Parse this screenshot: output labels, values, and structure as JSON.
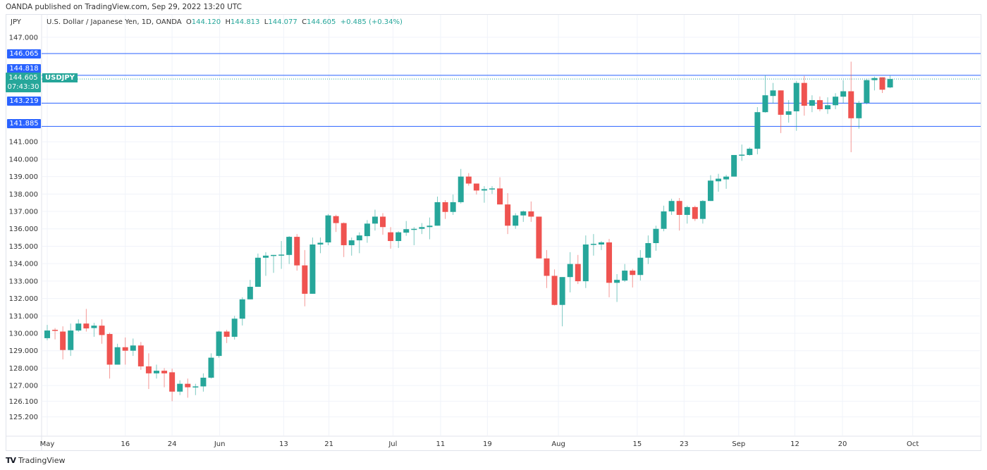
{
  "published": "OANDA published on TradingView.com, Sep 29, 2022 13:20 UTC",
  "currency": "JPY",
  "legend": {
    "title": "U.S. Dollar / Japanese Yen, 1D, OANDA",
    "o_label": "O",
    "o": "144.120",
    "h_label": "H",
    "h": "144.813",
    "l_label": "L",
    "l": "144.077",
    "c_label": "C",
    "c": "144.605",
    "change": "+0.485 (+0.34%)"
  },
  "price_tags": {
    "level1": "146.065",
    "level2": "144.818",
    "current": "144.605",
    "countdown": "07:43:30",
    "level3": "143.219",
    "level4": "141.885",
    "symbol": "USDJPY"
  },
  "footer": {
    "logo": "TV",
    "brand": "TradingView"
  },
  "colors": {
    "up": "#26a69a",
    "down": "#ef5350",
    "level": "#2962ff",
    "grid": "#f0f3fa"
  },
  "chart_data": {
    "type": "candlestick",
    "title": "U.S. Dollar / Japanese Yen, 1D, OANDA",
    "ylabel": "JPY",
    "ylim": [
      125.0,
      147.3
    ],
    "y_ticks": [
      "147.000",
      "141.000",
      "140.000",
      "139.000",
      "138.000",
      "137.000",
      "136.000",
      "135.000",
      "134.000",
      "133.000",
      "132.000",
      "131.000",
      "130.000",
      "129.000",
      "128.000",
      "127.000",
      "126.100",
      "125.200"
    ],
    "x_ticks": [
      {
        "label": "May",
        "bar": 0
      },
      {
        "label": "16",
        "bar": 10
      },
      {
        "label": "24",
        "bar": 16
      },
      {
        "label": "Jun",
        "bar": 22.1
      },
      {
        "label": "13",
        "bar": 30.3
      },
      {
        "label": "21",
        "bar": 36.1
      },
      {
        "label": "Jul",
        "bar": 44.3
      },
      {
        "label": "11",
        "bar": 50.4
      },
      {
        "label": "19",
        "bar": 56.4
      },
      {
        "label": "Aug",
        "bar": 65.5
      },
      {
        "label": "15",
        "bar": 75.6
      },
      {
        "label": "23",
        "bar": 81.6
      },
      {
        "label": "Sep",
        "bar": 88.6
      },
      {
        "label": "12",
        "bar": 95.8
      },
      {
        "label": "20",
        "bar": 101.9
      },
      {
        "label": "Oct",
        "bar": 110.9
      }
    ],
    "levels": [
      146.065,
      144.818,
      143.219,
      141.885
    ],
    "last_price": 144.605,
    "ohlc": [
      [
        129.72,
        130.48,
        129.6,
        130.16
      ],
      [
        130.2,
        130.3,
        129.65,
        130.15
      ],
      [
        130.1,
        130.4,
        128.5,
        129.04
      ],
      [
        129.04,
        130.56,
        128.7,
        130.16
      ],
      [
        130.16,
        130.8,
        130.08,
        130.56
      ],
      [
        130.56,
        131.4,
        130.1,
        130.28
      ],
      [
        130.3,
        130.6,
        129.8,
        130.44
      ],
      [
        130.44,
        130.8,
        129.4,
        129.9
      ],
      [
        129.96,
        130.04,
        127.4,
        128.2
      ],
      [
        128.2,
        129.4,
        128.2,
        129.2
      ],
      [
        129.2,
        129.76,
        128.2,
        129.0
      ],
      [
        129.0,
        129.7,
        128.7,
        129.3
      ],
      [
        129.3,
        129.5,
        127.9,
        128.1
      ],
      [
        128.1,
        128.85,
        126.8,
        127.7
      ],
      [
        127.7,
        128.2,
        127.4,
        127.85
      ],
      [
        127.85,
        128.0,
        126.9,
        127.7
      ],
      [
        127.76,
        127.97,
        126.1,
        126.65
      ],
      [
        126.65,
        127.3,
        126.45,
        127.1
      ],
      [
        127.1,
        127.4,
        126.3,
        126.9
      ],
      [
        126.9,
        127.1,
        126.45,
        126.95
      ],
      [
        126.95,
        127.7,
        126.65,
        127.45
      ],
      [
        127.45,
        128.85,
        127.4,
        128.6
      ],
      [
        128.7,
        130.15,
        128.6,
        130.1
      ],
      [
        130.1,
        130.2,
        129.44,
        129.8
      ],
      [
        129.8,
        131.0,
        129.64,
        130.84
      ],
      [
        130.84,
        132.07,
        130.45,
        131.95
      ],
      [
        131.95,
        133.07,
        131.95,
        132.67
      ],
      [
        132.67,
        134.58,
        132.67,
        134.34
      ],
      [
        134.34,
        134.66,
        133.3,
        134.46
      ],
      [
        134.46,
        134.5,
        133.47,
        134.5
      ],
      [
        134.5,
        135.3,
        133.7,
        134.52
      ],
      [
        134.5,
        135.58,
        133.98,
        135.54
      ],
      [
        135.54,
        135.7,
        133.6,
        133.9
      ],
      [
        133.9,
        134.78,
        131.55,
        132.27
      ],
      [
        132.27,
        135.5,
        132.27,
        135.1
      ],
      [
        135.1,
        135.5,
        134.6,
        135.2
      ],
      [
        135.22,
        136.85,
        135.06,
        136.77
      ],
      [
        136.73,
        136.81,
        135.82,
        136.33
      ],
      [
        136.33,
        136.37,
        134.38,
        135.06
      ],
      [
        135.06,
        135.5,
        134.46,
        135.34
      ],
      [
        135.34,
        135.8,
        134.6,
        135.62
      ],
      [
        135.58,
        136.5,
        135.2,
        136.3
      ],
      [
        136.3,
        137.1,
        135.9,
        136.7
      ],
      [
        136.7,
        136.9,
        135.66,
        136.1
      ],
      [
        135.8,
        136.1,
        134.86,
        135.3
      ],
      [
        135.3,
        135.86,
        134.9,
        135.8
      ],
      [
        135.78,
        136.45,
        135.6,
        135.98
      ],
      [
        135.97,
        136.1,
        135.06,
        136.0
      ],
      [
        136.0,
        136.33,
        135.7,
        136.1
      ],
      [
        136.1,
        136.65,
        135.4,
        136.18
      ],
      [
        136.18,
        137.85,
        136.18,
        137.53
      ],
      [
        137.53,
        137.65,
        136.57,
        136.97
      ],
      [
        136.97,
        137.97,
        136.8,
        137.53
      ],
      [
        137.53,
        139.44,
        137.45,
        139.0
      ],
      [
        139.0,
        139.2,
        138.48,
        138.6
      ],
      [
        138.6,
        138.6,
        137.97,
        138.2
      ],
      [
        138.2,
        138.45,
        137.5,
        138.28
      ],
      [
        138.28,
        138.45,
        138.0,
        138.32
      ],
      [
        138.32,
        138.96,
        137.4,
        137.4
      ],
      [
        137.4,
        138.05,
        135.7,
        136.18
      ],
      [
        136.18,
        136.9,
        136.0,
        136.77
      ],
      [
        136.77,
        137.05,
        136.4,
        137.0
      ],
      [
        137.0,
        137.57,
        136.4,
        136.7
      ],
      [
        136.7,
        136.7,
        134.3,
        134.3
      ],
      [
        134.3,
        134.78,
        132.6,
        133.3
      ],
      [
        133.3,
        133.67,
        131.6,
        131.63
      ],
      [
        131.63,
        133.23,
        130.4,
        133.23
      ],
      [
        133.23,
        134.66,
        132.35,
        133.98
      ],
      [
        133.98,
        134.5,
        132.83,
        132.99
      ],
      [
        132.99,
        135.62,
        132.6,
        135.1
      ],
      [
        135.1,
        135.7,
        134.46,
        135.14
      ],
      [
        135.1,
        135.3,
        134.78,
        135.22
      ],
      [
        135.22,
        135.42,
        132.07,
        132.9
      ],
      [
        132.9,
        133.4,
        131.8,
        133.07
      ],
      [
        133.03,
        133.98,
        132.95,
        133.6
      ],
      [
        133.6,
        133.7,
        132.63,
        133.35
      ],
      [
        133.35,
        134.78,
        133.03,
        134.34
      ],
      [
        134.34,
        135.62,
        133.98,
        135.18
      ],
      [
        135.18,
        136.18,
        134.74,
        136.0
      ],
      [
        136.0,
        137.33,
        135.86,
        137.0
      ],
      [
        137.0,
        137.73,
        136.8,
        137.6
      ],
      [
        137.6,
        137.77,
        135.9,
        136.8
      ],
      [
        136.8,
        137.33,
        136.3,
        137.25
      ],
      [
        137.25,
        137.33,
        136.45,
        136.57
      ],
      [
        136.57,
        137.65,
        136.3,
        137.6
      ],
      [
        137.6,
        139.08,
        137.6,
        138.77
      ],
      [
        138.73,
        139.16,
        138.13,
        138.88
      ],
      [
        138.84,
        139.1,
        138.3,
        139.0
      ],
      [
        139.0,
        140.24,
        139.0,
        140.24
      ],
      [
        140.2,
        140.84,
        139.9,
        140.26
      ],
      [
        140.24,
        140.68,
        140.2,
        140.6
      ],
      [
        140.6,
        142.99,
        140.28,
        142.7
      ],
      [
        142.7,
        144.82,
        142.67,
        143.67
      ],
      [
        143.63,
        144.38,
        143.2,
        143.95
      ],
      [
        143.95,
        143.95,
        141.5,
        142.55
      ],
      [
        142.55,
        143.39,
        142.1,
        142.75
      ],
      [
        142.75,
        144.5,
        141.63,
        144.38
      ],
      [
        144.38,
        144.78,
        142.5,
        143.07
      ],
      [
        143.07,
        143.67,
        142.7,
        143.39
      ],
      [
        143.39,
        143.6,
        142.75,
        142.87
      ],
      [
        142.87,
        143.55,
        142.6,
        143.1
      ],
      [
        143.1,
        143.79,
        142.87,
        143.59
      ],
      [
        143.59,
        144.54,
        143.23,
        143.9
      ],
      [
        143.9,
        145.6,
        140.4,
        142.35
      ],
      [
        142.35,
        143.35,
        141.75,
        143.23
      ],
      [
        143.23,
        144.62,
        143.15,
        144.54
      ],
      [
        144.54,
        144.74,
        143.95,
        144.66
      ],
      [
        144.7,
        144.7,
        143.8,
        143.99
      ],
      [
        144.12,
        144.813,
        144.077,
        144.605
      ]
    ]
  }
}
